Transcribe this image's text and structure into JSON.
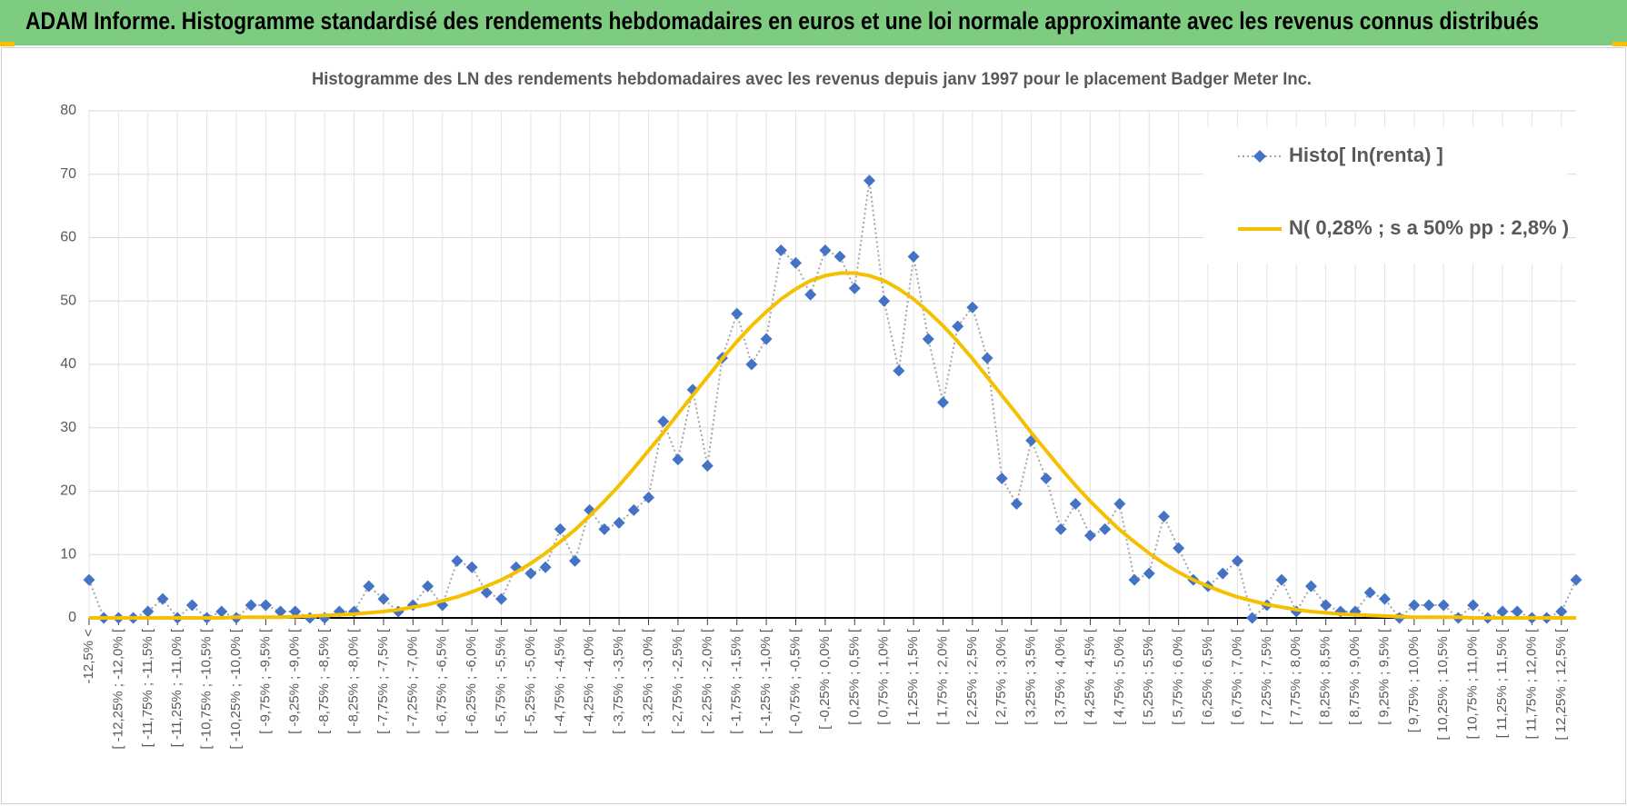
{
  "header": {
    "title": "ADAM Informe. Histogramme standardisé des rendements hebdomadaires en euros et une loi normale approximante avec les revenus connus distribués"
  },
  "chart_data": {
    "type": "line",
    "title": "Histogramme des LN des rendements hebdomadaires avec les revenus depuis janv 1997 pour le placement Badger Meter Inc.",
    "categories": [
      "-12,5% <",
      null,
      "[ -12,25% ; -12,0% [",
      null,
      "[ -11,75% ; -11,5% [",
      null,
      "[ -11,25% ; -11,0% [",
      null,
      "[ -10,75% ; -10,5% [",
      null,
      "[ -10,25% ; -10,0% [",
      null,
      "[ -9,75% ; -9,5% [",
      null,
      "[ -9,25% ; -9,0% [",
      null,
      "[ -8,75% ; -8,5% [",
      null,
      "[ -8,25% ; -8,0% [",
      null,
      "[ -7,75% ; -7,5% [",
      null,
      "[ -7,25% ; -7,0% [",
      null,
      "[ -6,75% ; -6,5% [",
      null,
      "[ -6,25% ; -6,0% [",
      null,
      "[ -5,75% ; -5,5% [",
      null,
      "[ -5,25% ; -5,0% [",
      null,
      "[ -4,75% ; -4,5% [",
      null,
      "[ -4,25% ; -4,0% [",
      null,
      "[ -3,75% ; -3,5% [",
      null,
      "[ -3,25% ; -3,0% [",
      null,
      "[ -2,75% ; -2,5% [",
      null,
      "[ -2,25% ; -2,0% [",
      null,
      "[ -1,75% ; -1,5% [",
      null,
      "[ -1,25% ; -1,0% [",
      null,
      "[ -0,75% ; -0,5% [",
      null,
      "[ -0,25% ; 0,0% [",
      null,
      "[ 0,25% ; 0,5% [",
      null,
      "[ 0,75% ; 1,0% [",
      null,
      "[ 1,25% ; 1,5% [",
      null,
      "[ 1,75% ; 2,0% [",
      null,
      "[ 2,25% ; 2,5% [",
      null,
      "[ 2,75% ; 3,0% [",
      null,
      "[ 3,25% ; 3,5% [",
      null,
      "[ 3,75% ; 4,0% [",
      null,
      "[ 4,25% ; 4,5% [",
      null,
      "[ 4,75% ; 5,0% [",
      null,
      "[ 5,25% ; 5,5% [",
      null,
      "[ 5,75% ; 6,0% [",
      null,
      "[ 6,25% ; 6,5% [",
      null,
      "[ 6,75% ; 7,0% [",
      null,
      "[ 7,25% ; 7,5% [",
      null,
      "[ 7,75% ; 8,0% [",
      null,
      "[ 8,25% ; 8,5% [",
      null,
      "[ 8,75% ; 9,0% [",
      null,
      "[ 9,25% ; 9,5% [",
      null,
      "[ 9,75% ; 10,0% [",
      null,
      "[ 10,25% ; 10,5% [",
      null,
      "[ 10,75% ; 11,0% [",
      null,
      "[ 11,25% ; 11,5% [",
      null,
      "[ 11,75% ; 12,0% [",
      null,
      "[ 12,25% ; 12,5% [",
      null
    ],
    "series": [
      {
        "name": "Histo[ ln(renta) ]",
        "color": "#4472c4",
        "line_color": "#a6a6a6",
        "marker": "diamond",
        "line_style": "dotted",
        "values": [
          6,
          0,
          0,
          0,
          1,
          3,
          0,
          2,
          0,
          1,
          0,
          2,
          2,
          1,
          1,
          0,
          0,
          1,
          1,
          5,
          3,
          1,
          2,
          5,
          2,
          9,
          8,
          4,
          3,
          8,
          7,
          8,
          14,
          9,
          17,
          14,
          15,
          17,
          19,
          31,
          25,
          36,
          24,
          41,
          48,
          40,
          44,
          58,
          56,
          51,
          58,
          57,
          52,
          69,
          50,
          39,
          57,
          44,
          34,
          46,
          49,
          41,
          22,
          18,
          28,
          22,
          14,
          18,
          13,
          14,
          18,
          6,
          7,
          16,
          11,
          6,
          5,
          7,
          9,
          0,
          2,
          6,
          1,
          5,
          2,
          1,
          1,
          4,
          3,
          0,
          2,
          2,
          2,
          0,
          2,
          0,
          1,
          1,
          0,
          0,
          1,
          6
        ]
      },
      {
        "name": "N( 0,28% ; s a 50% pp : 2,8% )",
        "color": "#f5c000",
        "marker": "none",
        "line_style": "solid",
        "values": [
          0,
          0,
          0,
          0,
          0,
          0,
          0,
          0,
          0,
          0,
          0.1,
          0.1,
          0.1,
          0.1,
          0.2,
          0.3,
          0.4,
          0.5,
          0.6,
          0.8,
          1.0,
          1.3,
          1.7,
          2.1,
          2.7,
          3.3,
          4.1,
          5.0,
          6.0,
          7.2,
          8.6,
          10.2,
          12.0,
          13.9,
          16.1,
          18.4,
          20.9,
          23.6,
          26.4,
          29.2,
          32.2,
          35.1,
          38.0,
          40.9,
          43.6,
          46.1,
          48.3,
          50.3,
          51.9,
          53.2,
          54.0,
          54.4,
          54.4,
          54.0,
          53.2,
          51.9,
          50.3,
          48.3,
          46.1,
          43.6,
          40.9,
          38.0,
          35.1,
          32.2,
          29.2,
          26.4,
          23.6,
          20.9,
          18.4,
          16.1,
          13.9,
          12.0,
          10.2,
          8.6,
          7.2,
          6.0,
          5.0,
          4.1,
          3.3,
          2.7,
          2.1,
          1.7,
          1.3,
          1.0,
          0.8,
          0.6,
          0.5,
          0.4,
          0.3,
          0.2,
          0.1,
          0.1,
          0.1,
          0.1,
          0,
          0,
          0,
          0,
          0,
          0,
          0,
          0
        ]
      }
    ],
    "ylim": [
      0,
      80
    ],
    "yticks": [
      0,
      10,
      20,
      30,
      40,
      50,
      60,
      70,
      80
    ],
    "grid": true,
    "legend": "upper right"
  }
}
